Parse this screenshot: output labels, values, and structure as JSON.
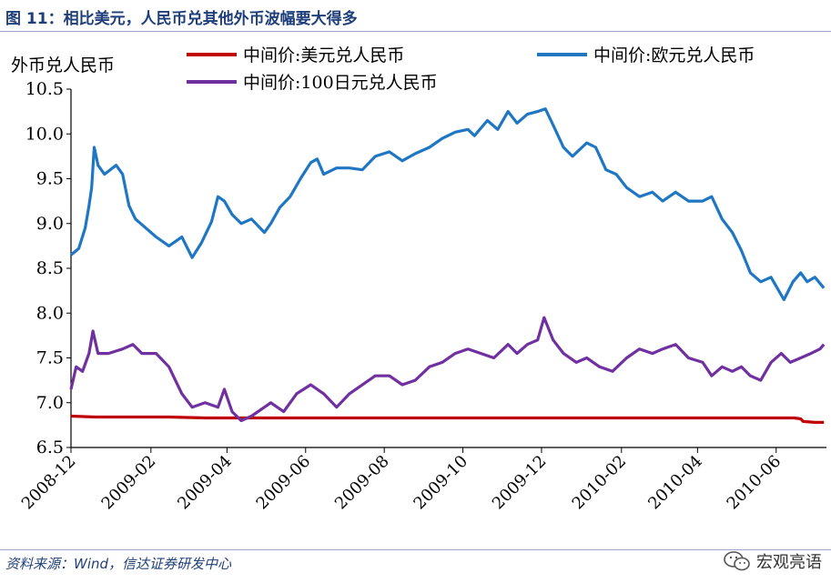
{
  "header": {
    "title": "图 11：相比美元，人民币兑其他外币波幅要大得多"
  },
  "footer": {
    "source": "资料来源：Wind，信达证券研发中心",
    "watermark": "宏观亮语",
    "watermark_icon": "wechat-icon"
  },
  "chart_data": {
    "type": "line",
    "ylabel": "外币兑人民币",
    "ylim": [
      6.5,
      10.5
    ],
    "yticks": [
      "6.5",
      "7.0",
      "7.5",
      "8.0",
      "8.5",
      "9.0",
      "9.5",
      "10.0",
      "10.5"
    ],
    "xlim": [
      "2008-12-01",
      "2010-07-10"
    ],
    "xticks": [
      "2008-12",
      "2009-02",
      "2009-04",
      "2009-06",
      "2009-08",
      "2009-10",
      "2009-12",
      "2010-02",
      "2010-04",
      "2010-06"
    ],
    "grid": false,
    "legend_position": "top",
    "series": [
      {
        "name": "中间价:美元兑人民币",
        "color": "#c00000",
        "points": [
          [
            "2008-12-01",
            6.85
          ],
          [
            "2008-12-20",
            6.84
          ],
          [
            "2009-01-15",
            6.84
          ],
          [
            "2009-02-15",
            6.84
          ],
          [
            "2009-03-15",
            6.83
          ],
          [
            "2009-04-15",
            6.83
          ],
          [
            "2009-05-15",
            6.83
          ],
          [
            "2009-06-15",
            6.83
          ],
          [
            "2009-07-15",
            6.83
          ],
          [
            "2009-08-15",
            6.83
          ],
          [
            "2009-09-15",
            6.83
          ],
          [
            "2009-10-15",
            6.83
          ],
          [
            "2009-11-15",
            6.83
          ],
          [
            "2009-12-15",
            6.83
          ],
          [
            "2010-01-15",
            6.83
          ],
          [
            "2010-02-15",
            6.83
          ],
          [
            "2010-03-15",
            6.83
          ],
          [
            "2010-04-15",
            6.83
          ],
          [
            "2010-05-15",
            6.83
          ],
          [
            "2010-06-15",
            6.83
          ],
          [
            "2010-06-20",
            6.82
          ],
          [
            "2010-06-22",
            6.79
          ],
          [
            "2010-07-01",
            6.78
          ],
          [
            "2010-07-08",
            6.78
          ]
        ]
      },
      {
        "name": "中间价:欧元兑人民币",
        "color": "#1f77c4",
        "points": [
          [
            "2008-12-01",
            8.65
          ],
          [
            "2008-12-07",
            8.72
          ],
          [
            "2008-12-12",
            8.95
          ],
          [
            "2008-12-15",
            9.2
          ],
          [
            "2008-12-17",
            9.4
          ],
          [
            "2008-12-19",
            9.85
          ],
          [
            "2008-12-22",
            9.65
          ],
          [
            "2008-12-27",
            9.55
          ],
          [
            "2009-01-05",
            9.65
          ],
          [
            "2009-01-10",
            9.55
          ],
          [
            "2009-01-15",
            9.2
          ],
          [
            "2009-01-20",
            9.05
          ],
          [
            "2009-01-28",
            8.95
          ],
          [
            "2009-02-05",
            8.85
          ],
          [
            "2009-02-15",
            8.75
          ],
          [
            "2009-02-25",
            8.85
          ],
          [
            "2009-03-05",
            8.62
          ],
          [
            "2009-03-12",
            8.78
          ],
          [
            "2009-03-20",
            9.02
          ],
          [
            "2009-03-25",
            9.3
          ],
          [
            "2009-03-30",
            9.25
          ],
          [
            "2009-04-05",
            9.1
          ],
          [
            "2009-04-12",
            9.0
          ],
          [
            "2009-04-20",
            9.05
          ],
          [
            "2009-04-30",
            8.9
          ],
          [
            "2009-05-05",
            9.0
          ],
          [
            "2009-05-12",
            9.18
          ],
          [
            "2009-05-20",
            9.3
          ],
          [
            "2009-05-28",
            9.5
          ],
          [
            "2009-06-05",
            9.68
          ],
          [
            "2009-06-10",
            9.72
          ],
          [
            "2009-06-15",
            9.55
          ],
          [
            "2009-06-25",
            9.62
          ],
          [
            "2009-07-05",
            9.62
          ],
          [
            "2009-07-15",
            9.6
          ],
          [
            "2009-07-25",
            9.75
          ],
          [
            "2009-08-05",
            9.8
          ],
          [
            "2009-08-15",
            9.7
          ],
          [
            "2009-08-25",
            9.78
          ],
          [
            "2009-09-05",
            9.85
          ],
          [
            "2009-09-15",
            9.95
          ],
          [
            "2009-09-25",
            10.02
          ],
          [
            "2009-10-05",
            10.05
          ],
          [
            "2009-10-10",
            9.98
          ],
          [
            "2009-10-20",
            10.15
          ],
          [
            "2009-10-28",
            10.05
          ],
          [
            "2009-11-05",
            10.25
          ],
          [
            "2009-11-12",
            10.12
          ],
          [
            "2009-11-20",
            10.22
          ],
          [
            "2009-11-28",
            10.25
          ],
          [
            "2009-12-04",
            10.28
          ],
          [
            "2009-12-10",
            10.1
          ],
          [
            "2009-12-18",
            9.85
          ],
          [
            "2009-12-25",
            9.75
          ],
          [
            "2010-01-05",
            9.9
          ],
          [
            "2010-01-12",
            9.85
          ],
          [
            "2010-01-20",
            9.6
          ],
          [
            "2010-01-28",
            9.55
          ],
          [
            "2010-02-05",
            9.4
          ],
          [
            "2010-02-15",
            9.3
          ],
          [
            "2010-02-25",
            9.35
          ],
          [
            "2010-03-05",
            9.25
          ],
          [
            "2010-03-15",
            9.35
          ],
          [
            "2010-03-25",
            9.25
          ],
          [
            "2010-04-05",
            9.25
          ],
          [
            "2010-04-12",
            9.3
          ],
          [
            "2010-04-20",
            9.05
          ],
          [
            "2010-04-28",
            8.9
          ],
          [
            "2010-05-05",
            8.7
          ],
          [
            "2010-05-12",
            8.45
          ],
          [
            "2010-05-20",
            8.35
          ],
          [
            "2010-05-28",
            8.4
          ],
          [
            "2010-06-07",
            8.15
          ],
          [
            "2010-06-14",
            8.35
          ],
          [
            "2010-06-20",
            8.45
          ],
          [
            "2010-06-25",
            8.35
          ],
          [
            "2010-07-01",
            8.4
          ],
          [
            "2010-07-08",
            8.28
          ]
        ]
      },
      {
        "name": "中间价:100日元兑人民币",
        "color": "#7030a0",
        "points": [
          [
            "2008-12-01",
            7.15
          ],
          [
            "2008-12-05",
            7.4
          ],
          [
            "2008-12-10",
            7.35
          ],
          [
            "2008-12-15",
            7.55
          ],
          [
            "2008-12-18",
            7.8
          ],
          [
            "2008-12-22",
            7.55
          ],
          [
            "2008-12-30",
            7.55
          ],
          [
            "2009-01-10",
            7.6
          ],
          [
            "2009-01-18",
            7.65
          ],
          [
            "2009-01-25",
            7.55
          ],
          [
            "2009-02-05",
            7.55
          ],
          [
            "2009-02-15",
            7.4
          ],
          [
            "2009-02-25",
            7.1
          ],
          [
            "2009-03-05",
            6.95
          ],
          [
            "2009-03-15",
            7.0
          ],
          [
            "2009-03-25",
            6.95
          ],
          [
            "2009-03-30",
            7.15
          ],
          [
            "2009-04-05",
            6.9
          ],
          [
            "2009-04-12",
            6.8
          ],
          [
            "2009-04-20",
            6.85
          ],
          [
            "2009-04-30",
            6.95
          ],
          [
            "2009-05-05",
            7.0
          ],
          [
            "2009-05-15",
            6.9
          ],
          [
            "2009-05-25",
            7.1
          ],
          [
            "2009-06-05",
            7.2
          ],
          [
            "2009-06-15",
            7.1
          ],
          [
            "2009-06-25",
            6.95
          ],
          [
            "2009-07-05",
            7.1
          ],
          [
            "2009-07-15",
            7.2
          ],
          [
            "2009-07-25",
            7.3
          ],
          [
            "2009-08-05",
            7.3
          ],
          [
            "2009-08-15",
            7.2
          ],
          [
            "2009-08-25",
            7.25
          ],
          [
            "2009-09-05",
            7.4
          ],
          [
            "2009-09-15",
            7.45
          ],
          [
            "2009-09-25",
            7.55
          ],
          [
            "2009-10-05",
            7.6
          ],
          [
            "2009-10-15",
            7.55
          ],
          [
            "2009-10-25",
            7.5
          ],
          [
            "2009-11-05",
            7.65
          ],
          [
            "2009-11-12",
            7.55
          ],
          [
            "2009-11-20",
            7.65
          ],
          [
            "2009-11-28",
            7.7
          ],
          [
            "2009-12-03",
            7.95
          ],
          [
            "2009-12-10",
            7.7
          ],
          [
            "2009-12-18",
            7.55
          ],
          [
            "2009-12-28",
            7.45
          ],
          [
            "2010-01-05",
            7.5
          ],
          [
            "2010-01-15",
            7.4
          ],
          [
            "2010-01-25",
            7.35
          ],
          [
            "2010-02-05",
            7.5
          ],
          [
            "2010-02-15",
            7.6
          ],
          [
            "2010-02-25",
            7.55
          ],
          [
            "2010-03-05",
            7.6
          ],
          [
            "2010-03-15",
            7.65
          ],
          [
            "2010-03-25",
            7.5
          ],
          [
            "2010-04-05",
            7.45
          ],
          [
            "2010-04-12",
            7.3
          ],
          [
            "2010-04-20",
            7.4
          ],
          [
            "2010-04-28",
            7.35
          ],
          [
            "2010-05-05",
            7.4
          ],
          [
            "2010-05-12",
            7.3
          ],
          [
            "2010-05-20",
            7.25
          ],
          [
            "2010-05-28",
            7.45
          ],
          [
            "2010-06-05",
            7.55
          ],
          [
            "2010-06-12",
            7.45
          ],
          [
            "2010-06-20",
            7.5
          ],
          [
            "2010-06-28",
            7.55
          ],
          [
            "2010-07-05",
            7.6
          ],
          [
            "2010-07-08",
            7.65
          ]
        ]
      }
    ]
  }
}
